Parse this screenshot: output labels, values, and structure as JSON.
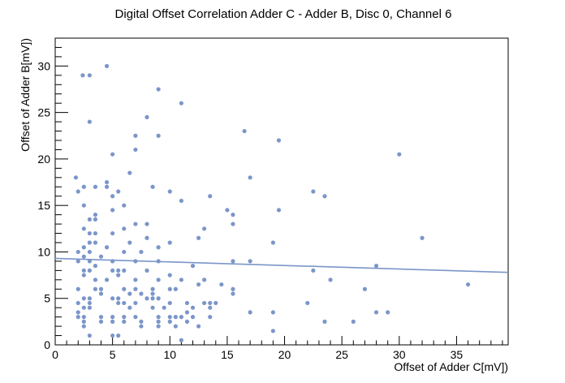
{
  "chart_data": {
    "type": "scatter",
    "title": "Digital Offset Correlation Adder C - Adder B, Disc 0, Channel 6",
    "xlabel": "Offset of Adder C[mV])",
    "ylabel": "Offset of Adder B[mV])",
    "xlim": [
      0,
      39.5
    ],
    "ylim": [
      0,
      33
    ],
    "xticks": [
      0,
      5,
      10,
      15,
      20,
      25,
      30,
      35
    ],
    "yticks": [
      0,
      5,
      10,
      15,
      20,
      25,
      30
    ],
    "grid": false,
    "marker_color": "#7b96c9",
    "fit_line": {
      "x": [
        0,
        39.5
      ],
      "y": [
        9.3,
        7.8
      ],
      "color": "#7b96c9"
    },
    "points": [
      [
        1.8,
        18.0
      ],
      [
        2.4,
        29.0
      ],
      [
        3.0,
        29.0
      ],
      [
        4.5,
        30.0
      ],
      [
        3.0,
        24.0
      ],
      [
        9.0,
        27.5
      ],
      [
        11.0,
        26.0
      ],
      [
        8.0,
        24.5
      ],
      [
        7.0,
        22.5
      ],
      [
        9.0,
        22.5
      ],
      [
        7.0,
        21.0
      ],
      [
        5.0,
        20.5
      ],
      [
        6.5,
        18.5
      ],
      [
        2.5,
        17.0
      ],
      [
        3.5,
        17.0
      ],
      [
        4.5,
        17.5
      ],
      [
        4.5,
        17.0
      ],
      [
        8.5,
        17.0
      ],
      [
        2.0,
        16.5
      ],
      [
        5.5,
        16.5
      ],
      [
        5.0,
        16.0
      ],
      [
        10.0,
        16.5
      ],
      [
        13.5,
        16.0
      ],
      [
        11.0,
        15.5
      ],
      [
        2.5,
        15.0
      ],
      [
        6.0,
        15.0
      ],
      [
        15.0,
        14.5
      ],
      [
        3.5,
        14.0
      ],
      [
        5.0,
        14.5
      ],
      [
        3.0,
        13.5
      ],
      [
        3.5,
        13.5
      ],
      [
        7.0,
        13.0
      ],
      [
        8.0,
        13.0
      ],
      [
        2.5,
        12.5
      ],
      [
        6.0,
        12.5
      ],
      [
        13.0,
        12.5
      ],
      [
        3.0,
        12.0
      ],
      [
        3.5,
        12.0
      ],
      [
        5.0,
        12.0
      ],
      [
        12.5,
        11.5
      ],
      [
        8.0,
        11.5
      ],
      [
        3.0,
        11.0
      ],
      [
        3.5,
        11.0
      ],
      [
        4.5,
        10.5
      ],
      [
        2.5,
        10.5
      ],
      [
        6.5,
        11.0
      ],
      [
        7.5,
        10.0
      ],
      [
        9.0,
        10.5
      ],
      [
        10.0,
        11.0
      ],
      [
        2.0,
        10.0
      ],
      [
        3.0,
        10.0
      ],
      [
        4.0,
        9.5
      ],
      [
        6.0,
        10.0
      ],
      [
        2.5,
        9.5
      ],
      [
        2.0,
        9.0
      ],
      [
        3.0,
        9.0
      ],
      [
        5.0,
        9.0
      ],
      [
        7.0,
        9.0
      ],
      [
        9.0,
        9.0
      ],
      [
        12.0,
        8.5
      ],
      [
        3.5,
        8.5
      ],
      [
        2.5,
        8.0
      ],
      [
        3.0,
        8.0
      ],
      [
        5.0,
        8.0
      ],
      [
        5.5,
        8.0
      ],
      [
        6.0,
        8.0
      ],
      [
        8.0,
        8.0
      ],
      [
        10.0,
        7.5
      ],
      [
        2.5,
        7.5
      ],
      [
        3.5,
        7.0
      ],
      [
        4.5,
        7.0
      ],
      [
        5.5,
        7.5
      ],
      [
        7.0,
        7.0
      ],
      [
        9.0,
        7.0
      ],
      [
        11.0,
        7.0
      ],
      [
        13.0,
        7.0
      ],
      [
        12.5,
        6.5
      ],
      [
        2.0,
        6.0
      ],
      [
        3.5,
        6.0
      ],
      [
        4.0,
        6.0
      ],
      [
        6.0,
        6.0
      ],
      [
        7.0,
        6.0
      ],
      [
        8.5,
        6.0
      ],
      [
        10.0,
        6.0
      ],
      [
        10.5,
        6.0
      ],
      [
        14.5,
        6.5
      ],
      [
        4.0,
        5.5
      ],
      [
        6.5,
        5.5
      ],
      [
        7.5,
        5.5
      ],
      [
        8.5,
        5.5
      ],
      [
        8.0,
        5.0
      ],
      [
        2.5,
        5.0
      ],
      [
        3.0,
        5.0
      ],
      [
        5.0,
        5.0
      ],
      [
        5.5,
        5.0
      ],
      [
        8.5,
        5.0
      ],
      [
        9.0,
        5.0
      ],
      [
        6.0,
        4.5
      ],
      [
        2.0,
        4.5
      ],
      [
        3.0,
        4.5
      ],
      [
        5.5,
        4.5
      ],
      [
        7.0,
        4.5
      ],
      [
        10.0,
        4.5
      ],
      [
        11.5,
        4.5
      ],
      [
        13.0,
        4.5
      ],
      [
        13.5,
        4.5
      ],
      [
        14.0,
        4.5
      ],
      [
        2.5,
        4.0
      ],
      [
        3.0,
        4.0
      ],
      [
        6.5,
        4.0
      ],
      [
        8.5,
        4.0
      ],
      [
        9.5,
        4.0
      ],
      [
        12.0,
        4.0
      ],
      [
        13.5,
        4.0
      ],
      [
        16.5,
        23.0
      ],
      [
        17.0,
        18.0
      ],
      [
        19.5,
        22.0
      ],
      [
        15.5,
        14.0
      ],
      [
        15.5,
        13.0
      ],
      [
        19.5,
        14.5
      ],
      [
        22.5,
        16.5
      ],
      [
        23.5,
        16.0
      ],
      [
        19.0,
        11.0
      ],
      [
        15.5,
        9.0
      ],
      [
        17.0,
        9.0
      ],
      [
        22.5,
        8.0
      ],
      [
        24.0,
        7.0
      ],
      [
        15.5,
        6.0
      ],
      [
        15.5,
        5.5
      ],
      [
        22.0,
        4.5
      ],
      [
        17.0,
        3.5
      ],
      [
        19.0,
        3.5
      ],
      [
        23.5,
        2.5
      ],
      [
        26.0,
        2.5
      ],
      [
        19.0,
        1.5
      ],
      [
        27.0,
        6.0
      ],
      [
        28.0,
        8.5
      ],
      [
        28.0,
        3.5
      ],
      [
        29.0,
        3.5
      ],
      [
        30.0,
        20.5
      ],
      [
        32.0,
        11.5
      ],
      [
        36.0,
        6.5
      ],
      [
        2.0,
        3.5
      ],
      [
        2.0,
        3.0
      ],
      [
        2.5,
        3.0
      ],
      [
        4.0,
        3.0
      ],
      [
        5.0,
        3.0
      ],
      [
        6.0,
        3.0
      ],
      [
        7.0,
        3.0
      ],
      [
        9.0,
        3.0
      ],
      [
        10.0,
        3.0
      ],
      [
        10.5,
        3.0
      ],
      [
        11.0,
        3.0
      ],
      [
        11.5,
        3.5
      ],
      [
        12.0,
        3.0
      ],
      [
        13.5,
        3.0
      ],
      [
        2.5,
        2.5
      ],
      [
        4.0,
        2.5
      ],
      [
        5.0,
        2.5
      ],
      [
        6.0,
        2.5
      ],
      [
        7.5,
        2.5
      ],
      [
        9.0,
        2.5
      ],
      [
        10.0,
        2.5
      ],
      [
        11.5,
        2.5
      ],
      [
        2.5,
        2.0
      ],
      [
        7.5,
        2.0
      ],
      [
        9.0,
        2.0
      ],
      [
        10.5,
        2.0
      ],
      [
        12.5,
        2.0
      ],
      [
        3.0,
        1.0
      ],
      [
        5.0,
        1.0
      ],
      [
        5.5,
        1.0
      ],
      [
        11.0,
        0.5
      ]
    ]
  }
}
